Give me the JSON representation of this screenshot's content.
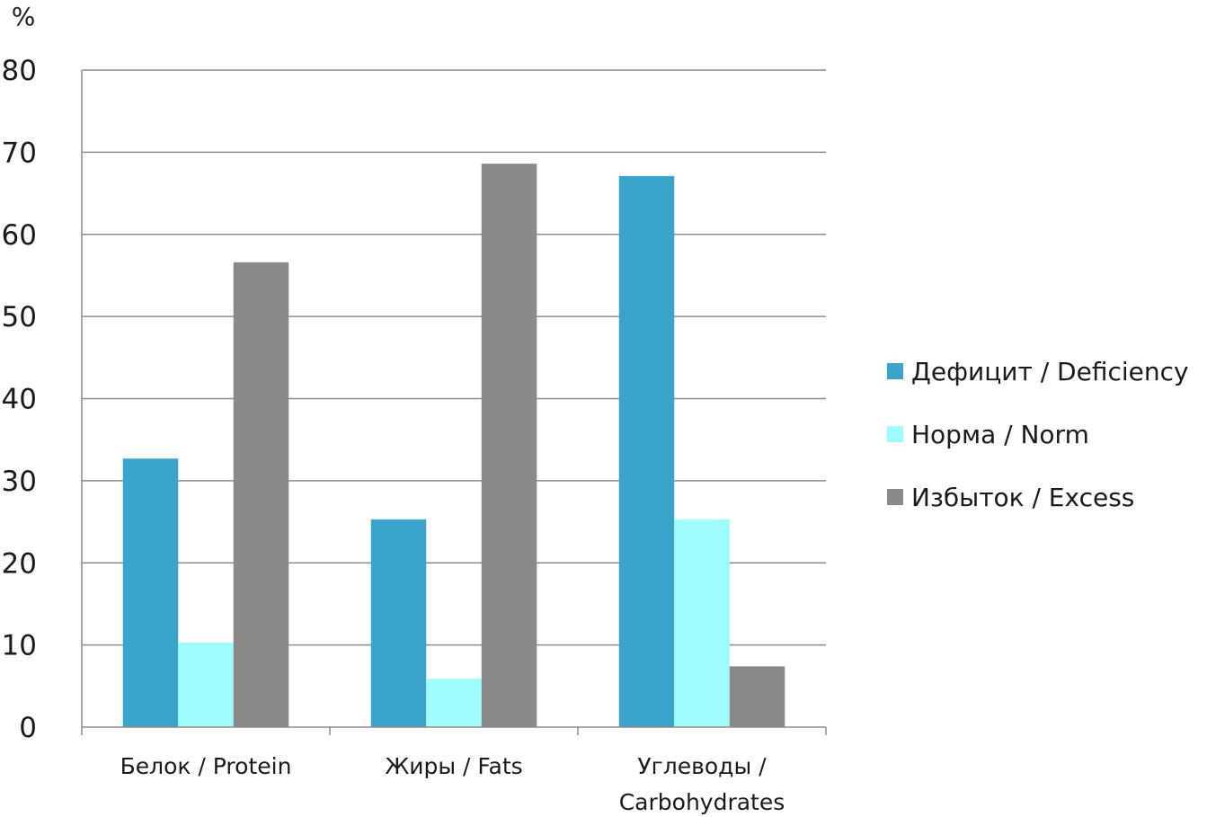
{
  "chart_data": {
    "type": "bar",
    "ylabel": "%",
    "ylim": [
      0,
      80
    ],
    "yticks": [
      0,
      10,
      20,
      30,
      40,
      50,
      60,
      70,
      80
    ],
    "grid": true,
    "legend_position": "right",
    "categories": [
      [
        "Белок / Protein"
      ],
      [
        "Жиры / Fats"
      ],
      [
        "Углеводы /",
        "Carbohydrates"
      ]
    ],
    "series": [
      {
        "name": "Дефицит / Deficiency",
        "color": "#3aa3c9",
        "values": [
          32.7,
          25.3,
          67.1
        ]
      },
      {
        "name": "Норма / Norm",
        "color": "#9ffcfc",
        "values": [
          10.3,
          5.9,
          25.3
        ]
      },
      {
        "name": "Избыток / Excess",
        "color": "#898989",
        "values": [
          56.6,
          68.6,
          7.4
        ]
      }
    ]
  }
}
